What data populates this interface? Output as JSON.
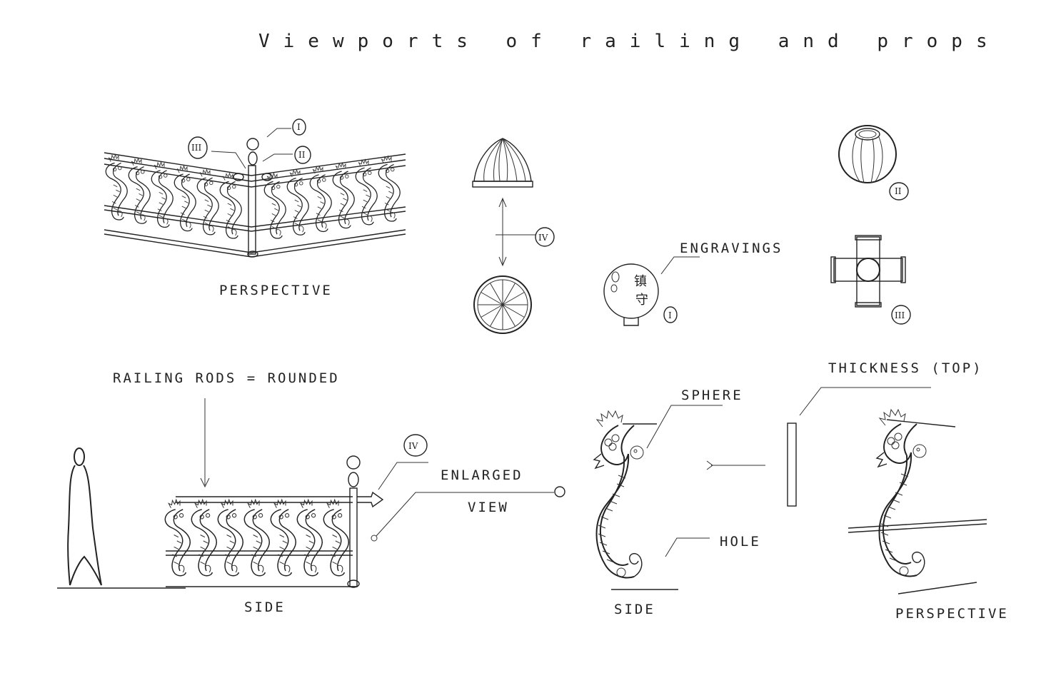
{
  "title": "Viewports of railing and props",
  "labels": {
    "perspective_top": "PERSPECTIVE",
    "railing_rods": "RAILING RODS = ROUNDED",
    "side_left": "SIDE",
    "enlarged": "ENLARGED",
    "view": "VIEW",
    "engravings": "ENGRAVINGS",
    "sphere": "SPHERE",
    "hole": "HOLE",
    "side_right": "SIDE",
    "thickness": "THICKNESS (TOP)",
    "perspective_bottom": "PERSPECTIVE"
  },
  "callouts": {
    "i": "I",
    "ii": "II",
    "iii": "III",
    "iv": "IV"
  },
  "engraving_glyphs": [
    "镇",
    "守"
  ]
}
